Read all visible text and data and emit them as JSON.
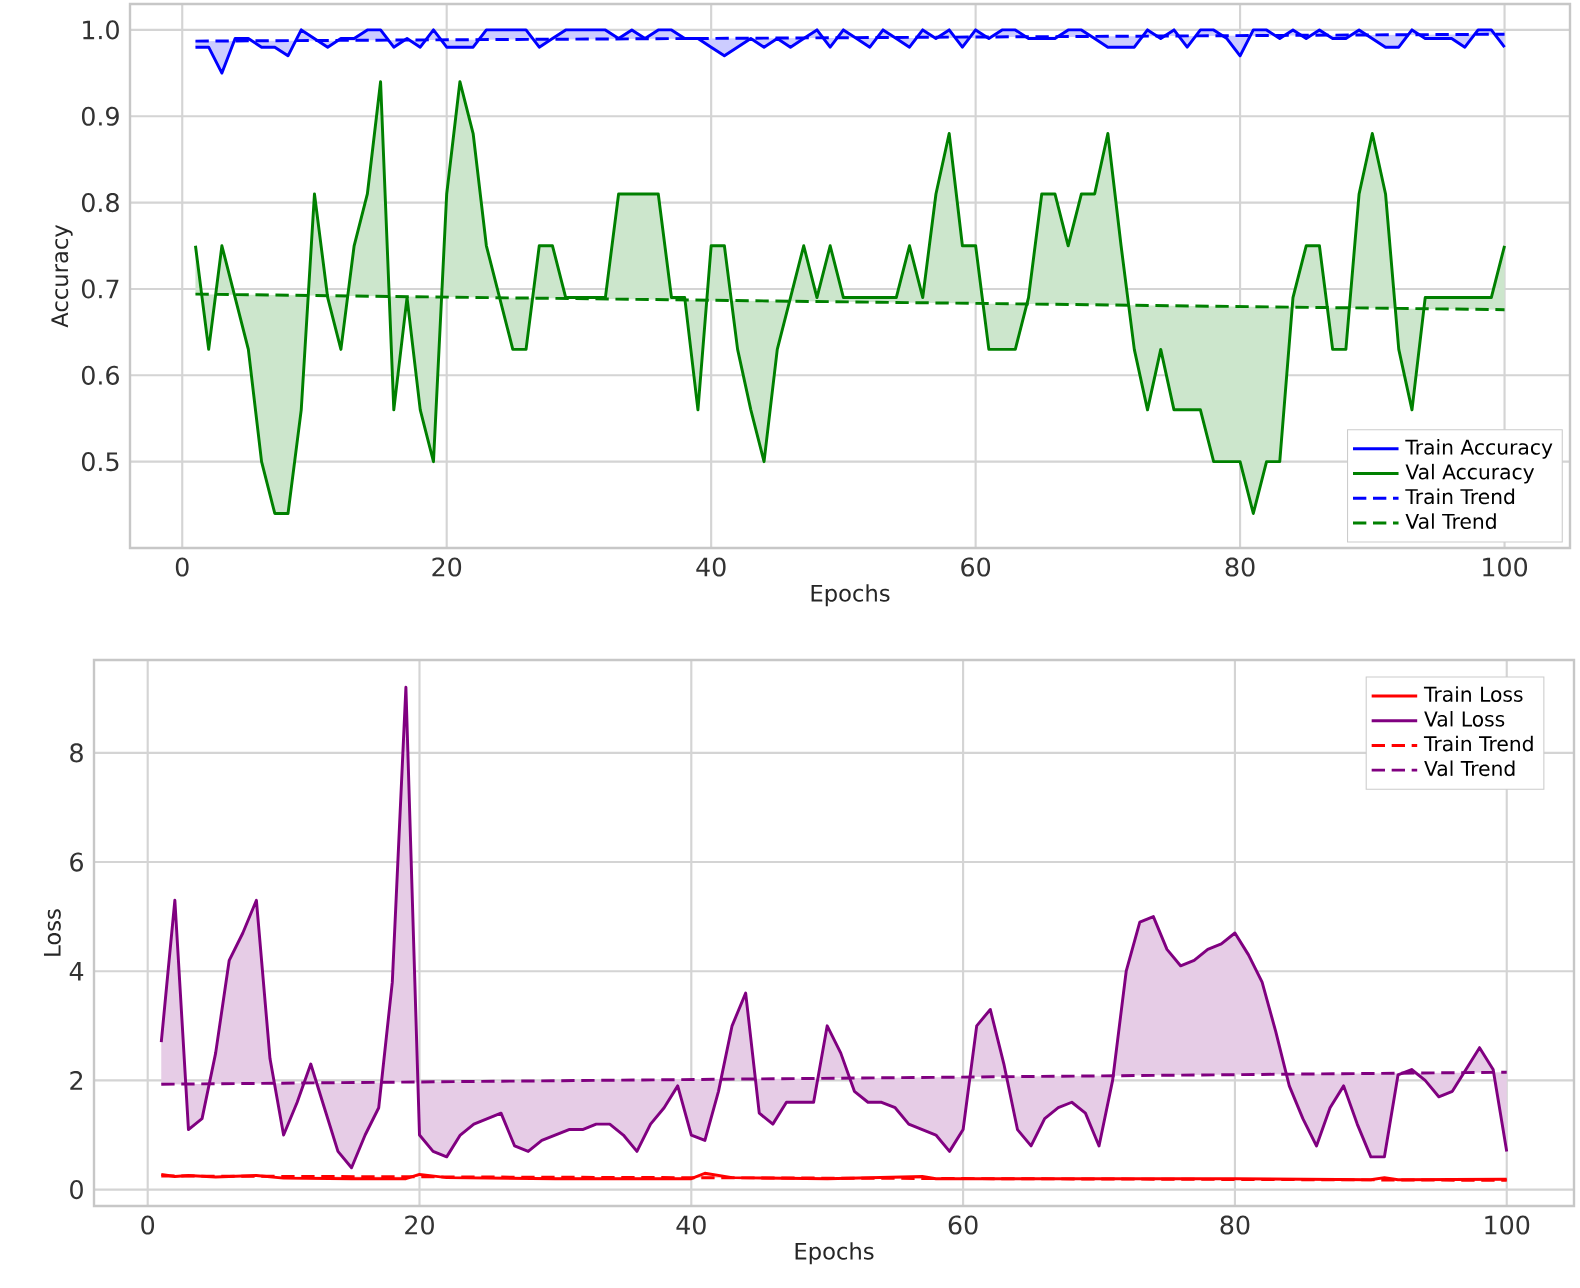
{
  "chart_data": [
    {
      "type": "line",
      "xlabel": "Epochs",
      "ylabel": "Accuracy",
      "legend": "bottom right",
      "grid": true,
      "xlim": [
        -3.95,
        104.95
      ],
      "ylim": [
        0.4,
        1.03
      ],
      "xticks": [
        0,
        20,
        40,
        60,
        80,
        100
      ],
      "yticks": [
        0.5,
        0.6,
        0.7,
        0.8,
        0.9,
        {
          "value": 1.0,
          "label": "1.0"
        }
      ],
      "x": [
        1,
        2,
        3,
        4,
        5,
        6,
        7,
        8,
        9,
        10,
        11,
        12,
        13,
        14,
        15,
        16,
        17,
        18,
        19,
        20,
        21,
        22,
        23,
        24,
        25,
        26,
        27,
        28,
        29,
        30,
        31,
        32,
        33,
        34,
        35,
        36,
        37,
        38,
        39,
        40,
        41,
        42,
        43,
        44,
        45,
        46,
        47,
        48,
        49,
        50,
        51,
        52,
        53,
        54,
        55,
        56,
        57,
        58,
        59,
        60,
        61,
        62,
        63,
        64,
        65,
        66,
        67,
        68,
        69,
        70,
        71,
        72,
        73,
        74,
        75,
        76,
        77,
        78,
        79,
        80,
        81,
        82,
        83,
        84,
        85,
        86,
        87,
        88,
        89,
        90,
        91,
        92,
        93,
        94,
        95,
        96,
        97,
        98,
        99,
        100
      ],
      "series": [
        {
          "name": "Train Accuracy",
          "color": "#0000ff",
          "line_style": "solid",
          "values": [
            0.98,
            0.98,
            0.95,
            0.99,
            0.99,
            0.98,
            0.98,
            0.97,
            1.0,
            0.99,
            0.98,
            0.99,
            0.99,
            1.0,
            1.0,
            0.98,
            0.99,
            0.98,
            1.0,
            0.98,
            0.98,
            0.98,
            1.0,
            1.0,
            1.0,
            1.0,
            0.98,
            0.99,
            1.0,
            1.0,
            1.0,
            1.0,
            0.99,
            1.0,
            0.99,
            1.0,
            1.0,
            0.99,
            0.99,
            0.98,
            0.97,
            0.98,
            0.99,
            0.98,
            0.99,
            0.98,
            0.99,
            1.0,
            0.98,
            1.0,
            0.99,
            0.98,
            1.0,
            0.99,
            0.98,
            1.0,
            0.99,
            1.0,
            0.98,
            1.0,
            0.99,
            1.0,
            1.0,
            0.99,
            0.99,
            0.99,
            1.0,
            1.0,
            0.99,
            0.98,
            0.98,
            0.98,
            1.0,
            0.99,
            1.0,
            0.98,
            1.0,
            1.0,
            0.99,
            0.97,
            1.0,
            1.0,
            0.99,
            1.0,
            0.99,
            1.0,
            0.99,
            0.99,
            1.0,
            0.99,
            0.98,
            0.98,
            1.0,
            0.99,
            0.99,
            0.99,
            0.98,
            1.0,
            1.0,
            0.98
          ]
        },
        {
          "name": "Val Accuracy",
          "color": "#008000",
          "line_style": "solid",
          "values": [
            0.75,
            0.63,
            0.75,
            0.69,
            0.63,
            0.5,
            0.44,
            0.44,
            0.56,
            0.81,
            0.69,
            0.63,
            0.75,
            0.81,
            0.94,
            0.56,
            0.69,
            0.56,
            0.5,
            0.81,
            0.94,
            0.88,
            0.75,
            0.69,
            0.63,
            0.63,
            0.75,
            0.75,
            0.69,
            0.69,
            0.69,
            0.69,
            0.81,
            0.81,
            0.81,
            0.81,
            0.69,
            0.69,
            0.56,
            0.75,
            0.75,
            0.63,
            0.56,
            0.5,
            0.63,
            0.69,
            0.75,
            0.69,
            0.75,
            0.69,
            0.69,
            0.69,
            0.69,
            0.69,
            0.75,
            0.69,
            0.81,
            0.88,
            0.75,
            0.75,
            0.63,
            0.63,
            0.63,
            0.69,
            0.81,
            0.81,
            0.75,
            0.81,
            0.81,
            0.88,
            0.75,
            0.63,
            0.56,
            0.63,
            0.56,
            0.56,
            0.56,
            0.5,
            0.5,
            0.5,
            0.44,
            0.5,
            0.5,
            0.69,
            0.75,
            0.75,
            0.63,
            0.63,
            0.81,
            0.88,
            0.81,
            0.63,
            0.56,
            0.69,
            0.69,
            0.69,
            0.69,
            0.69,
            0.69,
            0.75
          ]
        },
        {
          "name": "Train Trend",
          "color": "#0000ff",
          "line_style": "dashed",
          "x": [
            1,
            100
          ],
          "values": [
            0.987,
            0.995
          ]
        },
        {
          "name": "Val Trend",
          "color": "#008000",
          "line_style": "dashed",
          "x": [
            1,
            100
          ],
          "values": [
            0.694,
            0.676
          ]
        }
      ]
    },
    {
      "type": "line",
      "xlabel": "Epochs",
      "ylabel": "Loss",
      "legend": "top right",
      "grid": true,
      "xlim": [
        -3.95,
        104.95
      ],
      "ylim": [
        -0.3,
        9.7
      ],
      "xticks": [
        0,
        20,
        40,
        60,
        80,
        100
      ],
      "yticks": [
        0,
        2,
        4,
        6,
        8
      ],
      "x": [
        1,
        2,
        3,
        4,
        5,
        6,
        7,
        8,
        9,
        10,
        11,
        12,
        13,
        14,
        15,
        16,
        17,
        18,
        19,
        20,
        21,
        22,
        23,
        24,
        25,
        26,
        27,
        28,
        29,
        30,
        31,
        32,
        33,
        34,
        35,
        36,
        37,
        38,
        39,
        40,
        41,
        42,
        43,
        44,
        45,
        46,
        47,
        48,
        49,
        50,
        51,
        52,
        53,
        54,
        55,
        56,
        57,
        58,
        59,
        60,
        61,
        62,
        63,
        64,
        65,
        66,
        67,
        68,
        69,
        70,
        71,
        72,
        73,
        74,
        75,
        76,
        77,
        78,
        79,
        80,
        81,
        82,
        83,
        84,
        85,
        86,
        87,
        88,
        89,
        90,
        91,
        92,
        93,
        94,
        95,
        96,
        97,
        98,
        99,
        100
      ],
      "series": [
        {
          "name": "Train Loss",
          "color": "#ff0000",
          "line_style": "solid",
          "x": [
            1,
            2,
            3,
            5,
            8,
            10,
            15,
            19,
            20,
            22,
            30,
            40,
            41,
            43,
            50,
            57,
            58,
            70,
            80,
            90,
            91,
            92,
            100
          ],
          "values": [
            0.28,
            0.24,
            0.26,
            0.23,
            0.26,
            0.21,
            0.2,
            0.2,
            0.28,
            0.22,
            0.2,
            0.2,
            0.3,
            0.22,
            0.2,
            0.24,
            0.2,
            0.2,
            0.2,
            0.18,
            0.22,
            0.18,
            0.19
          ]
        },
        {
          "name": "Val Loss",
          "color": "#800080",
          "line_style": "solid",
          "values": [
            2.7,
            5.3,
            1.1,
            1.3,
            2.5,
            4.2,
            4.7,
            5.3,
            2.4,
            1.0,
            1.6,
            2.3,
            1.5,
            0.7,
            0.4,
            1.0,
            1.5,
            3.8,
            9.2,
            1.0,
            0.7,
            0.6,
            1.0,
            1.2,
            1.3,
            1.4,
            0.8,
            0.7,
            0.9,
            1.0,
            1.1,
            1.1,
            1.2,
            1.2,
            1.0,
            0.7,
            1.2,
            1.5,
            1.9,
            1.0,
            0.9,
            1.8,
            3.0,
            3.6,
            1.4,
            1.2,
            1.6,
            1.6,
            1.6,
            3.0,
            2.5,
            1.8,
            1.6,
            1.6,
            1.5,
            1.2,
            1.1,
            1.0,
            0.7,
            1.1,
            3.0,
            3.3,
            2.3,
            1.1,
            0.8,
            1.3,
            1.5,
            1.6,
            1.4,
            0.8,
            2.0,
            4.0,
            4.9,
            5.0,
            4.4,
            4.1,
            4.2,
            4.4,
            4.5,
            4.7,
            4.3,
            3.8,
            2.9,
            1.9,
            1.3,
            0.8,
            1.5,
            1.9,
            1.2,
            0.6,
            0.6,
            2.1,
            2.2,
            2.0,
            1.7,
            1.8,
            2.2,
            2.6,
            2.2,
            0.7
          ]
        },
        {
          "name": "Train Trend",
          "color": "#ff0000",
          "line_style": "dashed",
          "x": [
            1,
            100
          ],
          "values": [
            0.25,
            0.17
          ]
        },
        {
          "name": "Val Trend",
          "color": "#800080",
          "line_style": "dashed",
          "x": [
            1,
            100
          ],
          "values": [
            1.93,
            2.15
          ]
        }
      ]
    }
  ]
}
